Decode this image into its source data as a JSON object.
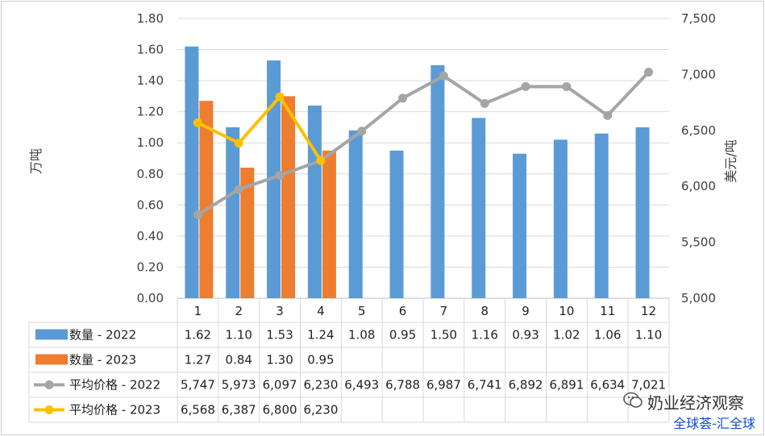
{
  "chart_data": {
    "type": "bar+line",
    "categories": [
      "1",
      "2",
      "3",
      "4",
      "5",
      "6",
      "7",
      "8",
      "9",
      "10",
      "11",
      "12"
    ],
    "left_axis": {
      "label": "万吨",
      "ylim": [
        0,
        1.8
      ],
      "ticks": [
        "0.00",
        "0.20",
        "0.40",
        "0.60",
        "0.80",
        "1.00",
        "1.20",
        "1.40",
        "1.60",
        "1.80"
      ]
    },
    "right_axis": {
      "label": "美元/吨",
      "ylim": [
        5000,
        7500
      ],
      "ticks": [
        "5,000",
        "5,500",
        "6,000",
        "6,500",
        "7,000",
        "7,500"
      ]
    },
    "bar_series": [
      {
        "name": "数量 - 2022",
        "color": "#5b9bd5",
        "values": [
          1.62,
          1.1,
          1.53,
          1.24,
          1.08,
          0.95,
          1.5,
          1.16,
          0.93,
          1.02,
          1.06,
          1.1
        ],
        "labels": [
          "1.62",
          "1.10",
          "1.53",
          "1.24",
          "1.08",
          "0.95",
          "1.50",
          "1.16",
          "0.93",
          "1.02",
          "1.06",
          "1.10"
        ]
      },
      {
        "name": "数量 - 2023",
        "color": "#ed7d31",
        "values": [
          1.27,
          0.84,
          1.3,
          0.95
        ],
        "labels": [
          "1.27",
          "0.84",
          "1.30",
          "0.95"
        ]
      }
    ],
    "line_series": [
      {
        "name": "平均价格 - 2022",
        "color": "#a5a5a5",
        "values": [
          5747,
          5973,
          6097,
          6230,
          6493,
          6788,
          6987,
          6741,
          6892,
          6891,
          6634,
          7021
        ],
        "labels": [
          "5,747",
          "5,973",
          "6,097",
          "6,230",
          "6,493",
          "6,788",
          "6,987",
          "6,741",
          "6,892",
          "6,891",
          "6,634",
          "7,021"
        ]
      },
      {
        "name": "平均价格 - 2023",
        "color": "#ffc000",
        "values": [
          6568,
          6387,
          6800,
          6230
        ],
        "labels": [
          "6,568",
          "6,387",
          "6,800",
          "6,230"
        ]
      }
    ],
    "grid": true,
    "legend": "data-table"
  },
  "watermark": {
    "line1": "奶业经济观察",
    "line2": "全球荟-汇全球"
  }
}
